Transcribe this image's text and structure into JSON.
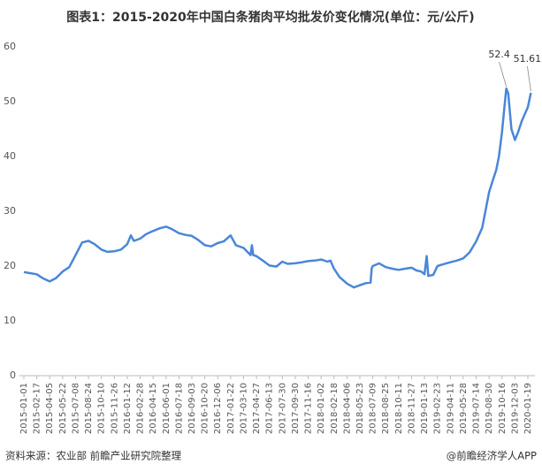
{
  "chart_data": {
    "type": "line",
    "title": "图表1：2015-2020年中国白条猪肉平均批发价变化情况(单位：元/公斤)",
    "source": "资料来源：农业部 前瞻产业研究院整理",
    "credit": "@前瞻经济学人APP",
    "ylim": [
      0,
      60
    ],
    "yticks": [
      0,
      10,
      20,
      30,
      40,
      50,
      60
    ],
    "xticks": [
      "2015-01-01",
      "2015-02-17",
      "2015-04-05",
      "2015-05-22",
      "2015-07-08",
      "2015-08-24",
      "2015-10-10",
      "2015-11-26",
      "2016-01-12",
      "2016-02-28",
      "2016-04-15",
      "2016-06-01",
      "2016-07-18",
      "2016-09-03",
      "2016-10-20",
      "2016-12-06",
      "2017-01-22",
      "2017-03-10",
      "2017-04-27",
      "2017-06-13",
      "2017-07-30",
      "2017-09-30",
      "2017-11-16",
      "2018-01-02",
      "2018-02-18",
      "2018-04-06",
      "2018-05-23",
      "2018-07-09",
      "2018-08-25",
      "2018-10-11",
      "2018-11-27",
      "2019-01-13",
      "2019-02-23",
      "2019-04-11",
      "2019-05-28",
      "2019-07-14",
      "2019-08-30",
      "2019-10-16",
      "2019-12-03",
      "2020-01-19"
    ],
    "grid": false,
    "series": [
      {
        "color": "#4a86d8",
        "x": [
          "2015-01-01",
          "2015-01-25",
          "2015-02-17",
          "2015-03-10",
          "2015-04-05",
          "2015-04-28",
          "2015-05-22",
          "2015-06-15",
          "2015-07-08",
          "2015-08-01",
          "2015-08-24",
          "2015-09-15",
          "2015-10-10",
          "2015-11-01",
          "2015-11-26",
          "2015-12-20",
          "2016-01-12",
          "2016-01-25",
          "2016-02-05",
          "2016-02-28",
          "2016-03-20",
          "2016-04-15",
          "2016-05-10",
          "2016-06-01",
          "2016-06-20",
          "2016-07-18",
          "2016-08-10",
          "2016-09-03",
          "2016-09-25",
          "2016-10-20",
          "2016-11-12",
          "2016-12-06",
          "2016-12-28",
          "2017-01-22",
          "2017-02-10",
          "2017-03-10",
          "2017-04-05",
          "2017-04-10",
          "2017-04-15",
          "2017-04-27",
          "2017-05-20",
          "2017-06-13",
          "2017-07-08",
          "2017-07-30",
          "2017-08-25",
          "2017-09-30",
          "2017-10-25",
          "2017-11-16",
          "2017-12-10",
          "2018-01-02",
          "2018-01-25",
          "2018-02-05",
          "2018-02-18",
          "2018-03-10",
          "2018-04-06",
          "2018-05-01",
          "2018-05-23",
          "2018-06-15",
          "2018-07-01",
          "2018-07-05",
          "2018-07-09",
          "2018-08-01",
          "2018-08-25",
          "2018-09-20",
          "2018-10-11",
          "2018-11-01",
          "2018-11-27",
          "2018-12-15",
          "2019-01-01",
          "2019-01-13",
          "2019-01-20",
          "2019-01-25",
          "2019-02-10",
          "2019-02-23",
          "2019-03-15",
          "2019-04-11",
          "2019-05-05",
          "2019-05-28",
          "2019-06-20",
          "2019-07-14",
          "2019-08-05",
          "2019-08-30",
          "2019-09-15",
          "2019-09-25",
          "2019-10-05",
          "2019-10-16",
          "2019-10-25",
          "2019-11-01",
          "2019-11-08",
          "2019-11-20",
          "2019-12-03",
          "2019-12-15",
          "2019-12-28",
          "2020-01-19",
          "2020-01-30"
        ],
        "values": [
          18.9,
          18.7,
          18.5,
          17.8,
          17.2,
          17.8,
          19.0,
          19.8,
          22.0,
          24.3,
          24.6,
          24.0,
          23.0,
          22.6,
          22.7,
          23.0,
          24.0,
          25.6,
          24.6,
          25.0,
          25.8,
          26.4,
          26.9,
          27.2,
          26.8,
          26.0,
          25.7,
          25.5,
          24.8,
          23.8,
          23.6,
          24.2,
          24.5,
          25.6,
          23.8,
          23.3,
          22.0,
          23.8,
          22.0,
          21.8,
          21.0,
          20.1,
          19.9,
          20.8,
          20.4,
          20.5,
          20.7,
          20.9,
          21.0,
          21.2,
          20.8,
          21.0,
          19.5,
          18.0,
          16.8,
          16.1,
          16.5,
          16.9,
          17.0,
          19.6,
          20.0,
          20.5,
          19.8,
          19.5,
          19.3,
          19.5,
          19.7,
          19.2,
          19.0,
          18.5,
          21.8,
          18.2,
          18.4,
          20.0,
          20.3,
          20.7,
          21.0,
          21.4,
          22.5,
          24.5,
          27.0,
          33.5,
          36.0,
          37.5,
          40.0,
          44.5,
          49.0,
          52.4,
          51.5,
          45.0,
          43.0,
          44.5,
          46.5,
          49.0,
          51.61
        ]
      }
    ],
    "annotations": [
      {
        "x": "2019-11-01",
        "y": 52.4
      },
      {
        "x": "2020-01-30",
        "y": 51.61
      }
    ]
  }
}
